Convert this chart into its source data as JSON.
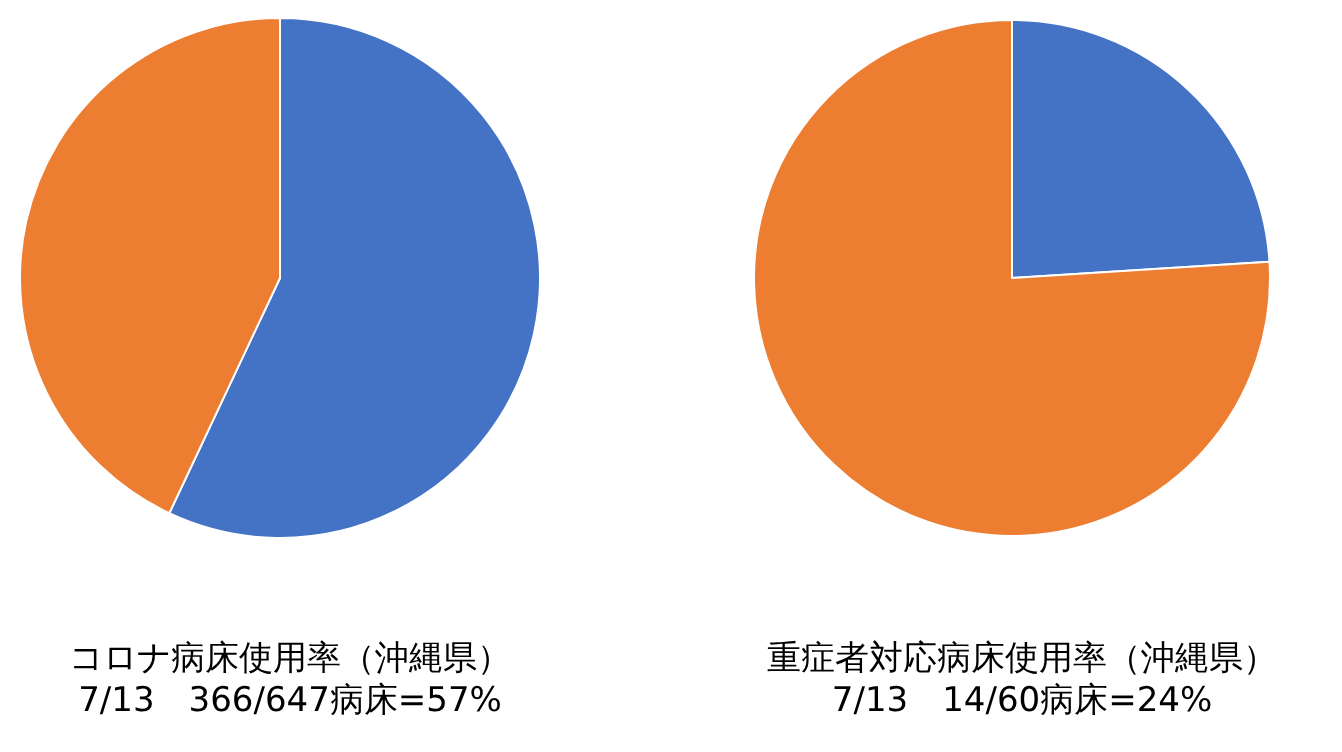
{
  "chart_data": [
    {
      "type": "pie",
      "title": "コロナ病床使用率（沖縄県）",
      "subtitle": "7/13　366/647病床=57%",
      "categories": [
        null,
        null
      ],
      "values": [
        57,
        43
      ],
      "colors": [
        "#4472c4",
        "#ed7d31"
      ]
    },
    {
      "type": "pie",
      "title": "重症者対応病床使用率（沖縄県）",
      "subtitle": "7/13　14/60病床=24%",
      "categories": [
        null,
        null
      ],
      "values": [
        24,
        76
      ],
      "colors": [
        "#4472c4",
        "#ed7d31"
      ]
    }
  ]
}
